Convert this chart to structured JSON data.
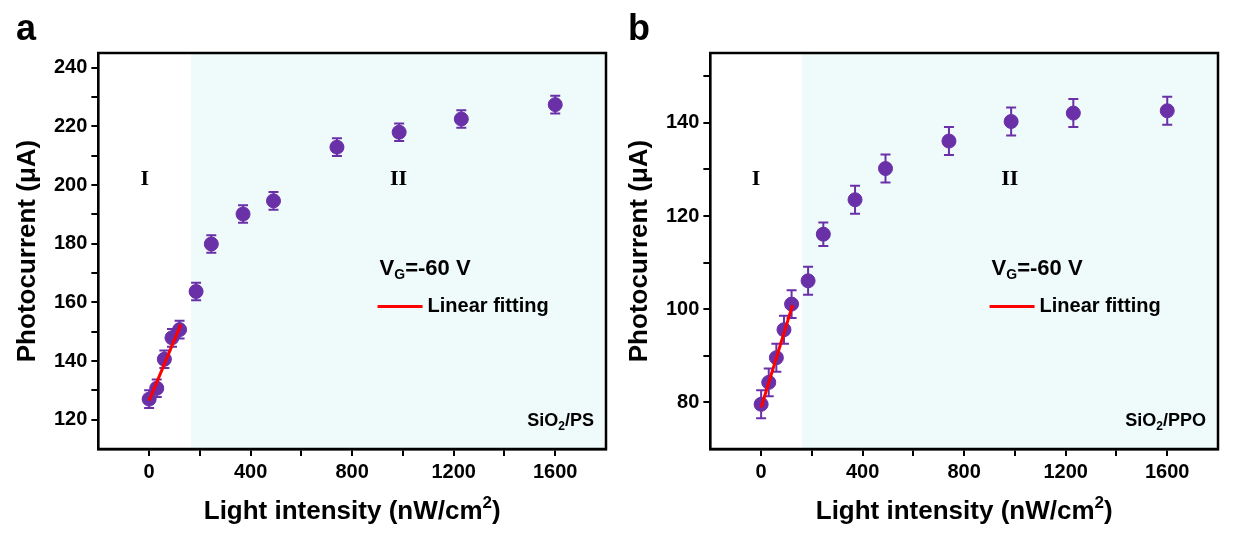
{
  "chart_data": [
    {
      "type": "scatter",
      "title": "a",
      "xlabel": "Light intensity (nW/cm$^{2}$)",
      "ylabel": "Photocurrent (μA)",
      "xlim": [
        -200,
        1800
      ],
      "xticks": [
        0,
        {
          "value": 200,
          "label": null
        },
        400,
        {
          "value": 600,
          "label": null
        },
        800,
        {
          "value": 1000,
          "label": null
        },
        1200,
        {
          "value": 1400,
          "label": null
        },
        1600
      ],
      "ylim": [
        110,
        245
      ],
      "yticks": [
        120,
        {
          "value": 130,
          "label": null
        },
        140,
        {
          "value": 150,
          "label": null
        },
        160,
        {
          "value": 170,
          "label": null
        },
        180,
        {
          "value": 190,
          "label": null
        },
        200,
        {
          "value": 210,
          "label": null
        },
        220,
        {
          "value": 230,
          "label": null
        },
        240
      ],
      "grid": false,
      "legend": "right",
      "annotations": [
        "V$_{G}$=-60 V",
        "SiO$_{2}$/PS"
      ],
      "bands": [
        {
          "axis": "x",
          "from": -200,
          "to": 165,
          "label": "I",
          "color": "#ffffff"
        },
        {
          "axis": "x",
          "from": 165,
          "to": 1800,
          "label": "II",
          "color": "#effafa"
        }
      ],
      "series": [
        {
          "color": "#6a30a8",
          "marker": "circle",
          "x": [
            0,
            30,
            60,
            90,
            120,
            185,
            245,
            370,
            490,
            740,
            985,
            1230,
            1600
          ],
          "values": [
            127,
            130.7,
            140.6,
            147.9,
            150.7,
            163.7,
            179.9,
            190.1,
            194.6,
            212.9,
            218,
            222.5,
            227.4
          ],
          "errors": [
            3,
            3,
            3,
            3,
            3,
            3,
            3,
            3,
            3,
            3,
            3,
            3,
            3
          ]
        },
        {
          "type": "line",
          "name": "Linear fitting",
          "color": "#ff0000",
          "line_style": "solid",
          "marker": "none",
          "x": [
            0,
            125
          ],
          "values": [
            126.5,
            152.5
          ]
        }
      ]
    },
    {
      "type": "scatter",
      "title": "b",
      "xlabel": "Light intensity (nW/cm$^{2}$)",
      "ylabel": "Photocurrent (μA)",
      "xlim": [
        -200,
        1800
      ],
      "xticks": [
        0,
        {
          "value": 200,
          "label": null
        },
        400,
        {
          "value": 600,
          "label": null
        },
        800,
        {
          "value": 1000,
          "label": null
        },
        1200,
        {
          "value": 1400,
          "label": null
        },
        1600
      ],
      "ylim": [
        70,
        155
      ],
      "yticks": [
        80,
        {
          "value": 90,
          "label": null
        },
        100,
        {
          "value": 110,
          "label": null
        },
        120,
        {
          "value": 130,
          "label": null
        },
        140,
        {
          "value": 150,
          "label": null
        }
      ],
      "grid": false,
      "legend": "right",
      "annotations": [
        "V$_{G}$=-60 V",
        "SiO$_{2}$/PPO"
      ],
      "bands": [
        {
          "axis": "x",
          "from": -200,
          "to": 160,
          "label": "I",
          "color": "#ffffff"
        },
        {
          "axis": "x",
          "from": 160,
          "to": 1800,
          "label": "II",
          "color": "#effafa"
        }
      ],
      "series": [
        {
          "color": "#6a30a8",
          "marker": "circle",
          "x": [
            0,
            30,
            60,
            90,
            120,
            185,
            245,
            370,
            490,
            740,
            985,
            1230,
            1600
          ],
          "values": [
            79.6,
            84.3,
            89.6,
            95.6,
            101.1,
            106.1,
            116.1,
            123.5,
            130.2,
            136.1,
            140.3,
            142.1,
            142.6
          ],
          "errors": [
            3,
            3,
            3,
            3,
            3,
            3,
            2.5,
            3,
            3,
            3,
            3,
            3,
            3
          ]
        },
        {
          "type": "line",
          "name": "Linear fitting",
          "color": "#ff0000",
          "line_style": "solid",
          "marker": "none",
          "x": [
            0,
            124
          ],
          "values": [
            78.9,
            100.9
          ]
        }
      ]
    }
  ]
}
